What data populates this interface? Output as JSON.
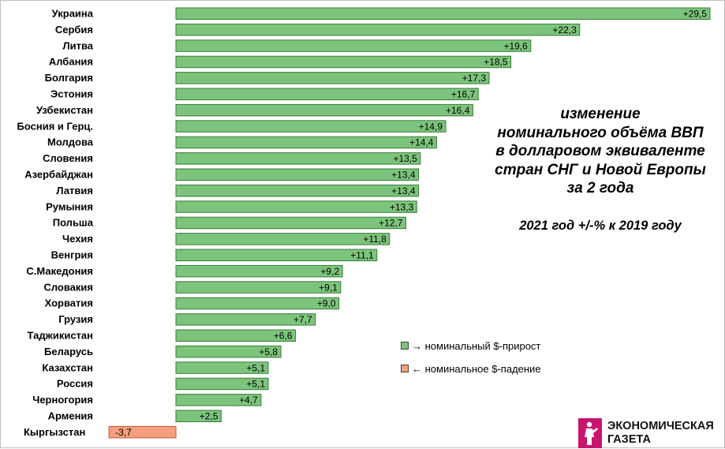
{
  "chart_data": {
    "type": "bar",
    "orientation": "horizontal",
    "categories": [
      "Украина",
      "Сербия",
      "Литва",
      "Албания",
      "Болгария",
      "Эстония",
      "Узбекистан",
      "Босния и Герц.",
      "Молдова",
      "Словения",
      "Азербайджан",
      "Латвия",
      "Румыния",
      "Польша",
      "Чехия",
      "Венгрия",
      "С.Македония",
      "Словакия",
      "Хорватия",
      "Грузия",
      "Таджикистан",
      "Беларусь",
      "Казахстан",
      "Россия",
      "Черногория",
      "Армения",
      "Кыргызстан"
    ],
    "values": [
      29.5,
      22.3,
      19.6,
      18.5,
      17.3,
      16.7,
      16.4,
      14.9,
      14.4,
      13.5,
      13.4,
      13.4,
      13.3,
      12.7,
      11.8,
      11.1,
      9.2,
      9.1,
      9.0,
      7.7,
      6.6,
      5.8,
      5.1,
      5.1,
      4.7,
      2.5,
      -3.7
    ],
    "value_labels": [
      "+29,5",
      "+22,3",
      "+19,6",
      "+18,5",
      "+17,3",
      "+16,7",
      "+16,4",
      "+14,9",
      "+14,4",
      "+13,5",
      "+13,4",
      "+13,4",
      "+13,3",
      "+12,7",
      "+11,8",
      "+11,1",
      "+9,2",
      "+9,1",
      "+9,0",
      "+7,7",
      "+6,6",
      "+5,8",
      "+5,1",
      "+5,1",
      "+4,7",
      "+2,5",
      "-3,7"
    ],
    "title_lines": [
      "изменение",
      "номинального объёма ВВП",
      "в долларовом эквиваленте",
      "стран СНГ и Новой Европы",
      "за 2 года"
    ],
    "subtitle": "2021 год  +/-% к 2019 году",
    "legend": [
      {
        "label": "→ номинальный $-прирост",
        "color": "#7cc47c"
      },
      {
        "label": "← номинальное $-падение",
        "color": "#f4a07f"
      }
    ],
    "legend_position": "right",
    "positive_color": "#7cc47c",
    "negative_color": "#f4a07f",
    "bar_border_color": "#3a7d3a",
    "negative_border_color": "#c8553a",
    "xlim": [
      -3.7,
      29.5
    ],
    "grid": false
  },
  "logo": {
    "line1": "ЭКОНОМИЧЕСКАЯ",
    "line2": "ГАЗЕТА",
    "color": "#c7156e"
  }
}
